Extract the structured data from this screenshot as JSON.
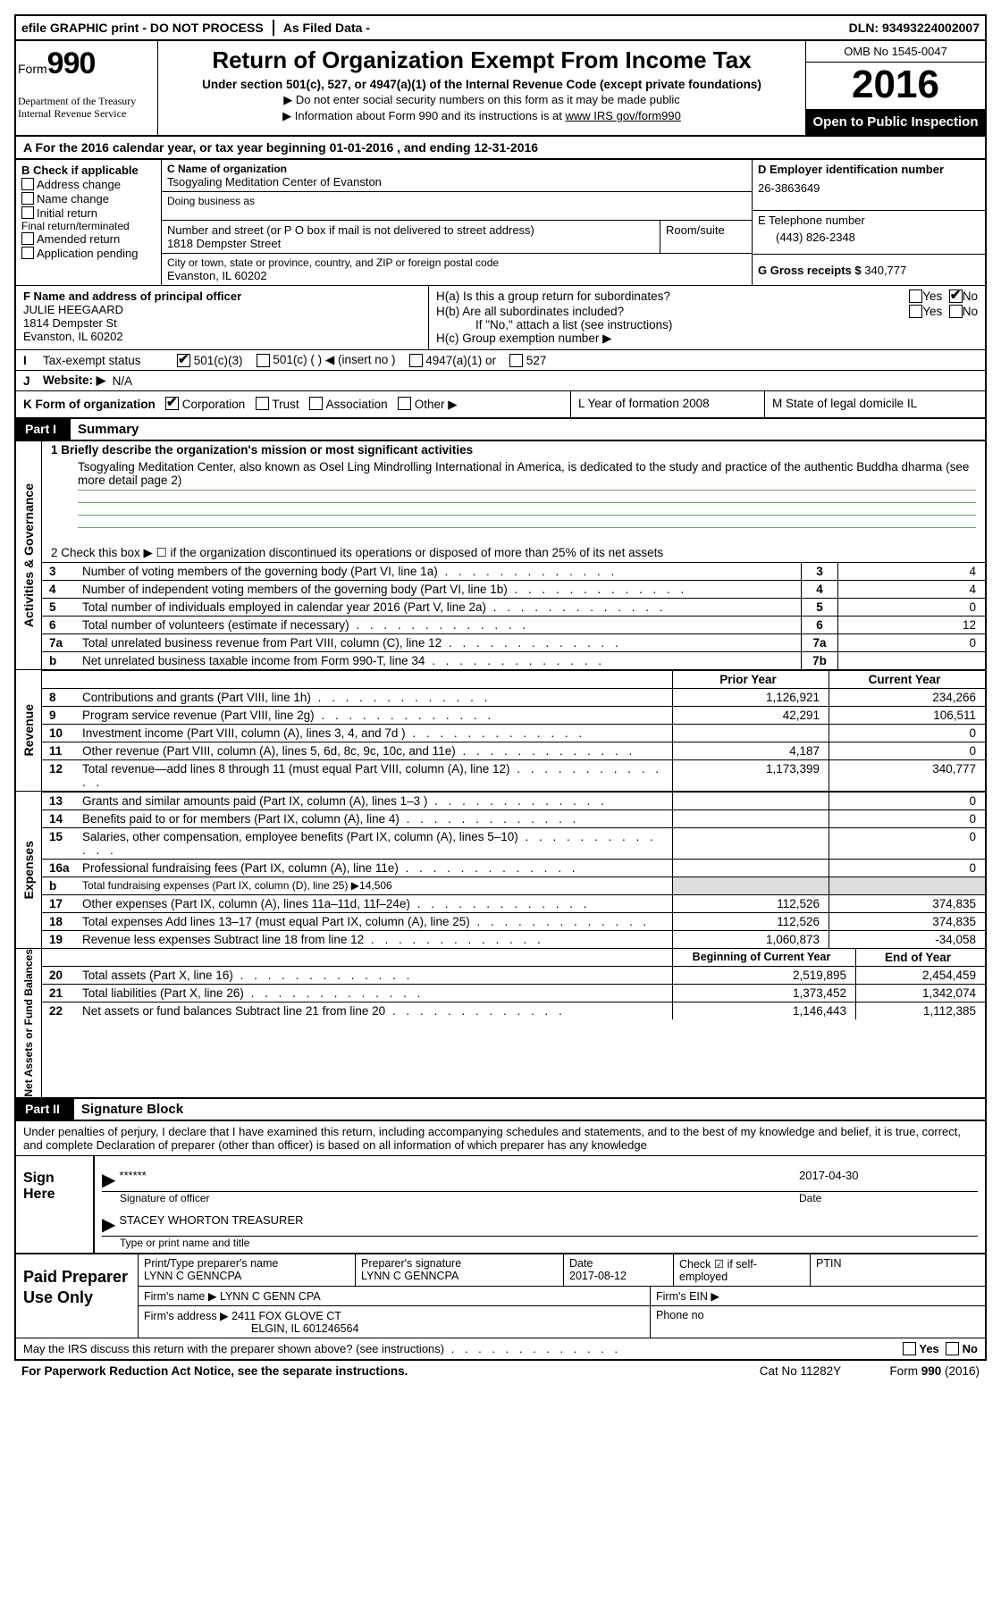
{
  "top": {
    "efile": "efile GRAPHIC print - DO NOT PROCESS",
    "filed": "As Filed Data -",
    "dln_lbl": "DLN:",
    "dln": "93493224002007"
  },
  "header": {
    "form_prefix": "Form",
    "form_num": "990",
    "dept1": "Department of the Treasury",
    "dept2": "Internal Revenue Service",
    "title": "Return of Organization Exempt From Income Tax",
    "sub": "Under section 501(c), 527, or 4947(a)(1) of the Internal Revenue Code (except private foundations)",
    "note1": "▶ Do not enter social security numbers on this form as it may be made public",
    "note2": "▶ Information about Form 990 and its instructions is at",
    "link": "www IRS gov/form990",
    "omb": "OMB No  1545-0047",
    "year": "2016",
    "open": "Open to Public Inspection"
  },
  "lineA": "A   For the 2016 calendar year, or tax year beginning 01-01-2016   , and ending 12-31-2016",
  "boxB": {
    "title": "B Check if applicable",
    "items": [
      "Address change",
      "Name change",
      "Initial return",
      "Final return/terminated",
      "Amended return",
      "Application pending"
    ]
  },
  "boxC": {
    "name_lbl": "C Name of organization",
    "name": "Tsogyaling Meditation Center of Evanston",
    "dba_lbl": "Doing business as",
    "addr_lbl": "Number and street (or P O  box if mail is not delivered to street address)",
    "room_lbl": "Room/suite",
    "addr": "1818 Dempster Street",
    "city_lbl": "City or town, state or province, country, and ZIP or foreign postal code",
    "city": "Evanston, IL  60202"
  },
  "boxD": {
    "lbl": "D Employer identification number",
    "val": "26-3863649"
  },
  "boxE": {
    "lbl": "E Telephone number",
    "val": "(443) 826-2348"
  },
  "boxG": {
    "lbl": "G Gross receipts $",
    "val": "340,777"
  },
  "boxF": {
    "lbl": "F  Name and address of principal officer",
    "name": "JULIE HEEGAARD",
    "addr": "1814 Dempster St",
    "city": "Evanston, IL  60202"
  },
  "boxH": {
    "a": "H(a)  Is this a group return for subordinates?",
    "b": "H(b)  Are all subordinates included?",
    "no_note": "If \"No,\" attach a list  (see instructions)",
    "c": "H(c)  Group exemption number ▶"
  },
  "rowI": "Tax-exempt status",
  "rowI_opts": [
    "501(c)(3)",
    "501(c) (   ) ◀ (insert no )",
    "4947(a)(1) or",
    "527"
  ],
  "rowJ": {
    "lbl": "Website: ▶",
    "val": "N/A"
  },
  "rowK": {
    "lbl": "K Form of organization",
    "opts": [
      "Corporation",
      "Trust",
      "Association",
      "Other ▶"
    ],
    "L": "L Year of formation  2008",
    "M": "M State of legal domicile  IL"
  },
  "part1": {
    "tag": "Part I",
    "title": "Summary"
  },
  "mission": {
    "l1": "1   Briefly describe the organization's mission or most significant activities",
    "txt": "Tsogyaling Meditation Center, also known as Osel Ling Mindrolling International in America, is dedicated to the study and practice of the authentic Buddha dharma (see more detail page 2)"
  },
  "line2": "2   Check this box ▶ ☐  if the organization discontinued its operations or disposed of more than 25% of its net assets",
  "gov_tbl": [
    {
      "n": "3",
      "txt": "Number of voting members of the governing body (Part VI, line 1a)",
      "key": "3",
      "val": "4"
    },
    {
      "n": "4",
      "txt": "Number of independent voting members of the governing body (Part VI, line 1b)",
      "key": "4",
      "val": "4"
    },
    {
      "n": "5",
      "txt": "Total number of individuals employed in calendar year 2016 (Part V, line 2a)",
      "key": "5",
      "val": "0"
    },
    {
      "n": "6",
      "txt": "Total number of volunteers (estimate if necessary)",
      "key": "6",
      "val": "12"
    },
    {
      "n": "7a",
      "txt": "Total unrelated business revenue from Part VIII, column (C), line 12",
      "key": "7a",
      "val": "0"
    },
    {
      "n": "b",
      "txt": "Net unrelated business taxable income from Form 990-T, line 34",
      "key": "7b",
      "val": ""
    }
  ],
  "rev_hdr": {
    "prior": "Prior Year",
    "curr": "Current Year"
  },
  "revenue": [
    {
      "n": "8",
      "txt": "Contributions and grants (Part VIII, line 1h)",
      "p": "1,126,921",
      "c": "234,266"
    },
    {
      "n": "9",
      "txt": "Program service revenue (Part VIII, line 2g)",
      "p": "42,291",
      "c": "106,511"
    },
    {
      "n": "10",
      "txt": "Investment income (Part VIII, column (A), lines 3, 4, and 7d )",
      "p": "",
      "c": "0"
    },
    {
      "n": "11",
      "txt": "Other revenue (Part VIII, column (A), lines 5, 6d, 8c, 9c, 10c, and 11e)",
      "p": "4,187",
      "c": "0"
    },
    {
      "n": "12",
      "txt": "Total revenue—add lines 8 through 11 (must equal Part VIII, column (A), line 12)",
      "p": "1,173,399",
      "c": "340,777"
    }
  ],
  "expenses": [
    {
      "n": "13",
      "txt": "Grants and similar amounts paid (Part IX, column (A), lines 1–3 )",
      "p": "",
      "c": "0"
    },
    {
      "n": "14",
      "txt": "Benefits paid to or for members (Part IX, column (A), line 4)",
      "p": "",
      "c": "0"
    },
    {
      "n": "15",
      "txt": "Salaries, other compensation, employee benefits (Part IX, column (A), lines 5–10)",
      "p": "",
      "c": "0"
    },
    {
      "n": "16a",
      "txt": "Professional fundraising fees (Part IX, column (A), line 11e)",
      "p": "",
      "c": "0"
    },
    {
      "n": "b",
      "txt": "Total fundraising expenses (Part IX, column (D), line 25) ▶14,506",
      "p": null,
      "c": null
    },
    {
      "n": "17",
      "txt": "Other expenses (Part IX, column (A), lines 11a–11d, 11f–24e)",
      "p": "112,526",
      "c": "374,835"
    },
    {
      "n": "18",
      "txt": "Total expenses  Add lines 13–17 (must equal Part IX, column (A), line 25)",
      "p": "112,526",
      "c": "374,835"
    },
    {
      "n": "19",
      "txt": "Revenue less expenses  Subtract line 18 from line 12",
      "p": "1,060,873",
      "c": "-34,058"
    }
  ],
  "net_hdr": {
    "prior": "Beginning of Current Year",
    "curr": "End of Year"
  },
  "net": [
    {
      "n": "20",
      "txt": "Total assets (Part X, line 16)",
      "p": "2,519,895",
      "c": "2,454,459"
    },
    {
      "n": "21",
      "txt": "Total liabilities (Part X, line 26)",
      "p": "1,373,452",
      "c": "1,342,074"
    },
    {
      "n": "22",
      "txt": "Net assets or fund balances  Subtract line 21 from line 20",
      "p": "1,146,443",
      "c": "1,112,385"
    }
  ],
  "part2": {
    "tag": "Part II",
    "title": "Signature Block"
  },
  "decl": "Under penalties of perjury, I declare that I have examined this return, including accompanying schedules and statements, and to the best of my knowledge and belief, it is true, correct, and complete  Declaration of preparer (other than officer) is based on all information of which preparer has any knowledge",
  "sign": {
    "lbl": "Sign Here",
    "stars": "******",
    "sig": "Signature of officer",
    "date": "2017-04-30",
    "date_lbl": "Date",
    "name": "STACEY WHORTON TREASURER",
    "name_lbl": "Type or print name and title"
  },
  "prep": {
    "lbl": "Paid Preparer Use Only",
    "h1": "Print/Type preparer's name",
    "v1": "LYNN C GENNCPA",
    "h2": "Preparer's signature",
    "v2": "LYNN C GENNCPA",
    "h3": "Date",
    "v3": "2017-08-12",
    "h4": "Check ☑ if self-employed",
    "h5": "PTIN",
    "firm_name_lbl": "Firm's name    ▶",
    "firm_name": "LYNN C GENN CPA",
    "firm_ein_lbl": "Firm's EIN ▶",
    "firm_addr_lbl": "Firm's address ▶",
    "firm_addr": "2411 FOX GLOVE CT",
    "firm_city": "ELGIN, IL  601246564",
    "phone_lbl": "Phone no"
  },
  "irs_q": "May the IRS discuss this return with the preparer shown above? (see instructions)",
  "footer": {
    "left": "For Paperwork Reduction Act Notice, see the separate instructions.",
    "mid": "Cat No  11282Y",
    "right": "Form 990 (2016)"
  },
  "labels": {
    "yes": "Yes",
    "no": "No",
    "side_gov": "Activities & Governance",
    "side_rev": "Revenue",
    "side_exp": "Expenses",
    "side_net": "Net Assets or Fund Balances"
  }
}
